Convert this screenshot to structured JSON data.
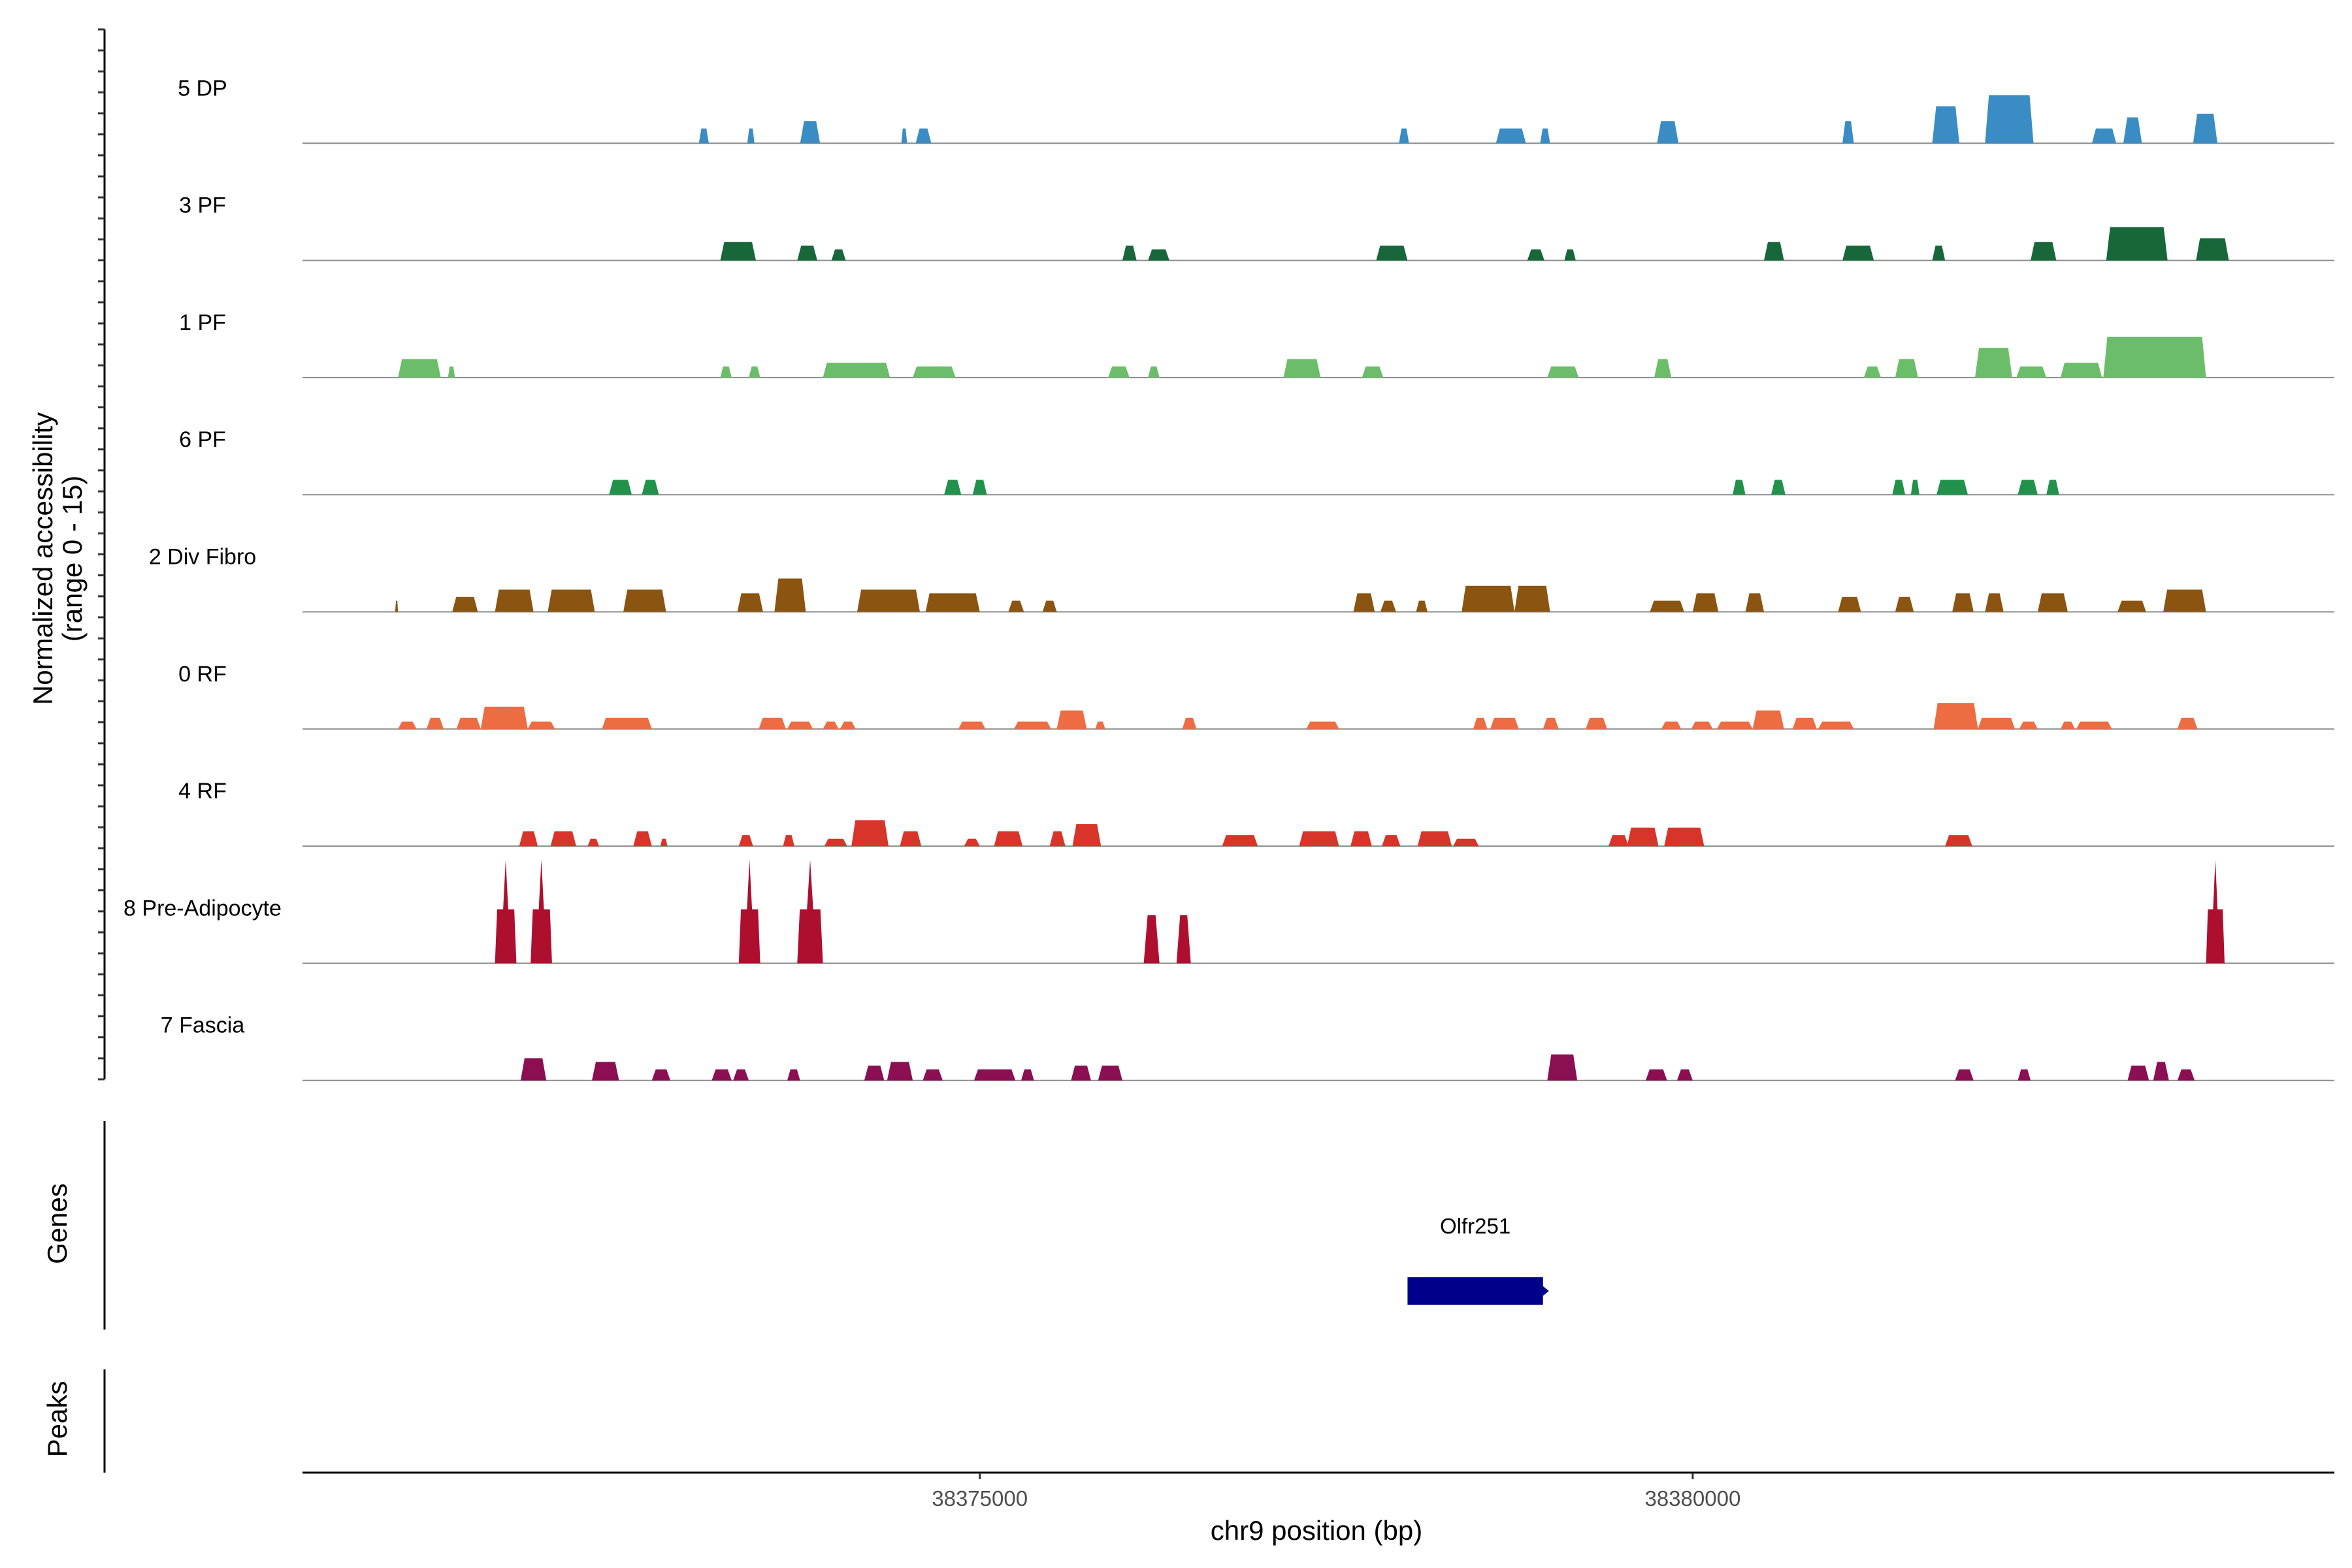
{
  "chart_data": {
    "type": "area",
    "title": "",
    "chromosome": "chr9",
    "xlabel": "chr9 position (bp)",
    "ylabel_line1": "Normalized accessibility",
    "ylabel_line2": "(range 0 - 15)",
    "ylim": [
      0,
      15
    ],
    "xlim": [
      38370250,
      38384500
    ],
    "x_ticks": [
      38375000,
      38380000
    ],
    "x_tick_labels": [
      "38375000",
      "38380000"
    ],
    "panel_labels": {
      "genes": "Genes",
      "peaks": "Peaks"
    },
    "genes": [
      {
        "name": "Olfr251",
        "start": 38378000,
        "end": 38378950,
        "color": "#00008b"
      }
    ],
    "tracks": [
      {
        "name": "5 DP",
        "color": "#3a8cc4",
        "peaks": [
          [
            38373030,
            38373100,
            2.0
          ],
          [
            38373370,
            38373420,
            2.0
          ],
          [
            38373740,
            38373880,
            3.0
          ],
          [
            38374450,
            38374490,
            2.0
          ],
          [
            38374550,
            38374660,
            2.0
          ],
          [
            38377940,
            38378010,
            2.0
          ],
          [
            38378620,
            38378830,
            2.0
          ],
          [
            38378930,
            38379000,
            2.0
          ],
          [
            38379750,
            38379900,
            3.0
          ],
          [
            38381050,
            38381130,
            3.0
          ],
          [
            38381680,
            38381870,
            5.0
          ],
          [
            38382050,
            38382390,
            6.5
          ],
          [
            38382800,
            38382970,
            2.0
          ],
          [
            38383020,
            38383150,
            3.5
          ],
          [
            38383510,
            38383680,
            4.0
          ]
        ]
      },
      {
        "name": "3 PF",
        "color": "#17673a",
        "peaks": [
          [
            38373180,
            38373430,
            2.5
          ],
          [
            38373720,
            38373860,
            2.0
          ],
          [
            38373960,
            38374060,
            1.5
          ],
          [
            38376000,
            38376100,
            2.0
          ],
          [
            38376180,
            38376330,
            1.5
          ],
          [
            38377780,
            38378000,
            2.0
          ],
          [
            38378840,
            38378960,
            1.5
          ],
          [
            38379100,
            38379180,
            1.5
          ],
          [
            38380500,
            38380640,
            2.5
          ],
          [
            38381050,
            38381270,
            2.0
          ],
          [
            38381680,
            38381770,
            2.0
          ],
          [
            38382370,
            38382550,
            2.5
          ],
          [
            38382900,
            38383330,
            4.5
          ],
          [
            38383530,
            38383760,
            3.0
          ]
        ]
      },
      {
        "name": "1 PF",
        "color": "#6cbd6a",
        "peaks": [
          [
            38370920,
            38371220,
            2.5
          ],
          [
            38371270,
            38371320,
            1.5
          ],
          [
            38373180,
            38373260,
            1.5
          ],
          [
            38373380,
            38373460,
            1.5
          ],
          [
            38373900,
            38374370,
            2.0
          ],
          [
            38374530,
            38374830,
            1.5
          ],
          [
            38375900,
            38376050,
            1.5
          ],
          [
            38376180,
            38376260,
            1.5
          ],
          [
            38377130,
            38377390,
            2.5
          ],
          [
            38377680,
            38377830,
            1.5
          ],
          [
            38378980,
            38379200,
            1.5
          ],
          [
            38379730,
            38379850,
            2.5
          ],
          [
            38381200,
            38381320,
            1.5
          ],
          [
            38381420,
            38381580,
            2.5
          ],
          [
            38381980,
            38382240,
            4.0
          ],
          [
            38382270,
            38382480,
            1.5
          ],
          [
            38382580,
            38382870,
            2.0
          ],
          [
            38382880,
            38383600,
            5.5
          ]
        ]
      },
      {
        "name": "6 PF",
        "color": "#22924b",
        "peaks": [
          [
            38372400,
            38372560,
            2.0
          ],
          [
            38372630,
            38372750,
            2.0
          ],
          [
            38374750,
            38374870,
            2.0
          ],
          [
            38374950,
            38375050,
            2.0
          ],
          [
            38380280,
            38380370,
            2.0
          ],
          [
            38380550,
            38380650,
            2.0
          ],
          [
            38381400,
            38381490,
            2.0
          ],
          [
            38381530,
            38381590,
            2.0
          ],
          [
            38381710,
            38381930,
            2.0
          ],
          [
            38382280,
            38382420,
            2.0
          ],
          [
            38382480,
            38382570,
            2.0
          ]
        ]
      },
      {
        "name": "2 Div Fibro",
        "color": "#8b5410",
        "peaks": [
          [
            38370900,
            38370920,
            1.5
          ],
          [
            38371300,
            38371480,
            2.0
          ],
          [
            38371600,
            38371870,
            3.0
          ],
          [
            38371970,
            38372300,
            3.0
          ],
          [
            38372500,
            38372800,
            3.0
          ],
          [
            38373300,
            38373480,
            2.5
          ],
          [
            38373560,
            38373780,
            4.5
          ],
          [
            38374140,
            38374580,
            3.0
          ],
          [
            38374620,
            38375000,
            2.5
          ],
          [
            38375200,
            38375310,
            1.5
          ],
          [
            38375440,
            38375540,
            1.5
          ],
          [
            38377620,
            38377770,
            2.5
          ],
          [
            38377810,
            38377920,
            1.5
          ],
          [
            38378060,
            38378140,
            1.5
          ],
          [
            38378380,
            38378750,
            3.5
          ],
          [
            38378750,
            38379000,
            3.5
          ],
          [
            38379700,
            38379940,
            1.5
          ],
          [
            38380000,
            38380180,
            2.5
          ],
          [
            38380370,
            38380500,
            2.5
          ],
          [
            38381020,
            38381180,
            2.0
          ],
          [
            38381420,
            38381550,
            2.0
          ],
          [
            38381820,
            38381970,
            2.5
          ],
          [
            38382050,
            38382180,
            2.5
          ],
          [
            38382420,
            38382630,
            2.5
          ],
          [
            38382980,
            38383180,
            1.5
          ],
          [
            38383300,
            38383600,
            3.0
          ]
        ]
      },
      {
        "name": "0 RF",
        "color": "#ee6c41",
        "peaks": [
          [
            38370920,
            38371050,
            1.0
          ],
          [
            38371120,
            38371240,
            1.5
          ],
          [
            38371330,
            38371500,
            1.5
          ],
          [
            38371500,
            38371830,
            3.0
          ],
          [
            38371830,
            38372020,
            1.0
          ],
          [
            38372350,
            38372700,
            1.5
          ],
          [
            38373450,
            38373640,
            1.5
          ],
          [
            38373650,
            38373830,
            1.0
          ],
          [
            38373900,
            38374010,
            1.0
          ],
          [
            38374020,
            38374130,
            1.0
          ],
          [
            38374850,
            38375040,
            1.0
          ],
          [
            38375240,
            38375500,
            1.0
          ],
          [
            38375540,
            38375750,
            2.5
          ],
          [
            38375810,
            38375880,
            1.0
          ],
          [
            38376420,
            38376520,
            1.5
          ],
          [
            38377290,
            38377520,
            1.0
          ],
          [
            38378460,
            38378560,
            1.5
          ],
          [
            38378580,
            38378780,
            1.5
          ],
          [
            38378950,
            38379060,
            1.5
          ],
          [
            38379250,
            38379400,
            1.5
          ],
          [
            38379780,
            38379920,
            1.0
          ],
          [
            38379990,
            38380140,
            1.0
          ],
          [
            38380170,
            38380420,
            1.0
          ],
          [
            38380420,
            38380640,
            2.5
          ],
          [
            38380700,
            38380870,
            1.5
          ],
          [
            38380880,
            38381130,
            1.0
          ],
          [
            38381690,
            38382000,
            3.5
          ],
          [
            38382000,
            38382260,
            1.5
          ],
          [
            38382290,
            38382420,
            1.0
          ],
          [
            38382580,
            38382680,
            1.0
          ],
          [
            38382690,
            38382940,
            1.0
          ],
          [
            38383400,
            38383540,
            1.5
          ]
        ]
      },
      {
        "name": "4 RF",
        "color": "#d8352a",
        "peaks": [
          [
            38371770,
            38371900,
            2.0
          ],
          [
            38371990,
            38372170,
            2.0
          ],
          [
            38372250,
            38372330,
            1.0
          ],
          [
            38372570,
            38372700,
            2.0
          ],
          [
            38372760,
            38372810,
            1.0
          ],
          [
            38373310,
            38373410,
            1.5
          ],
          [
            38373620,
            38373700,
            1.5
          ],
          [
            38373910,
            38374070,
            1.0
          ],
          [
            38374100,
            38374360,
            3.5
          ],
          [
            38374440,
            38374590,
            2.0
          ],
          [
            38374890,
            38375000,
            1.0
          ],
          [
            38375100,
            38375300,
            2.0
          ],
          [
            38375490,
            38375600,
            2.0
          ],
          [
            38375650,
            38375850,
            3.0
          ],
          [
            38376700,
            38376950,
            1.5
          ],
          [
            38377240,
            38377520,
            2.0
          ],
          [
            38377600,
            38377750,
            2.0
          ],
          [
            38377820,
            38377950,
            1.5
          ],
          [
            38378070,
            38378310,
            2.0
          ],
          [
            38378320,
            38378500,
            1.0
          ],
          [
            38379410,
            38379550,
            1.5
          ],
          [
            38379540,
            38379760,
            2.5
          ],
          [
            38379800,
            38380080,
            2.5
          ],
          [
            38381770,
            38381960,
            1.5
          ]
        ]
      },
      {
        "name": "8 Pre-Adipocyte",
        "color": "#ae0f2e",
        "peaks": [
          [
            38371600,
            38371750,
            14.0
          ],
          [
            38371850,
            38372000,
            14.0
          ],
          [
            38373310,
            38373460,
            14.0
          ],
          [
            38373720,
            38373900,
            14.0
          ],
          [
            38376150,
            38376260,
            6.5
          ],
          [
            38376380,
            38376480,
            6.5
          ],
          [
            38383600,
            38383730,
            14.0
          ]
        ]
      },
      {
        "name": "7 Fascia",
        "color": "#8b0f52",
        "peaks": [
          [
            38371780,
            38371960,
            3.0
          ],
          [
            38372280,
            38372470,
            2.5
          ],
          [
            38372700,
            38372830,
            1.5
          ],
          [
            38373120,
            38373260,
            1.5
          ],
          [
            38373270,
            38373380,
            1.5
          ],
          [
            38373650,
            38373740,
            1.5
          ],
          [
            38374190,
            38374330,
            2.0
          ],
          [
            38374350,
            38374530,
            2.5
          ],
          [
            38374600,
            38374740,
            1.5
          ],
          [
            38374960,
            38375250,
            1.5
          ],
          [
            38375290,
            38375380,
            1.5
          ],
          [
            38375640,
            38375780,
            2.0
          ],
          [
            38375830,
            38376000,
            2.0
          ],
          [
            38378980,
            38379190,
            3.5
          ],
          [
            38379670,
            38379820,
            1.5
          ],
          [
            38379890,
            38380000,
            1.5
          ],
          [
            38381840,
            38381970,
            1.5
          ],
          [
            38382280,
            38382370,
            1.5
          ],
          [
            38383050,
            38383200,
            2.0
          ],
          [
            38383230,
            38383340,
            2.5
          ],
          [
            38383400,
            38383520,
            1.5
          ]
        ]
      }
    ]
  }
}
